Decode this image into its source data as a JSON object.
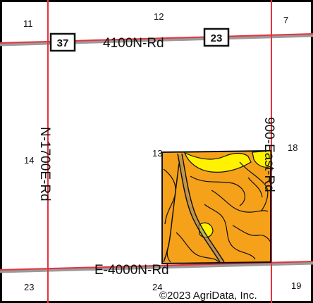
{
  "sections": {
    "nw": "11",
    "n": "12",
    "ne": "7",
    "w": "14",
    "field_corner": "13",
    "e": "18",
    "sw": "23",
    "s": "24",
    "se": "19"
  },
  "roads": {
    "north": "4100N-Rd",
    "south": "E-4000N-Rd",
    "west": "N-1700E-Rd",
    "east": "900-East-Rd"
  },
  "shields": {
    "west": "37",
    "east": "23"
  },
  "copyright": "©2023 AgriData, Inc.",
  "colors": {
    "road_line": "#e8323c",
    "soil_orange": "#f5a11a",
    "soil_yellow": "#fff200",
    "field_border": "#111111",
    "frame": "#000000"
  }
}
